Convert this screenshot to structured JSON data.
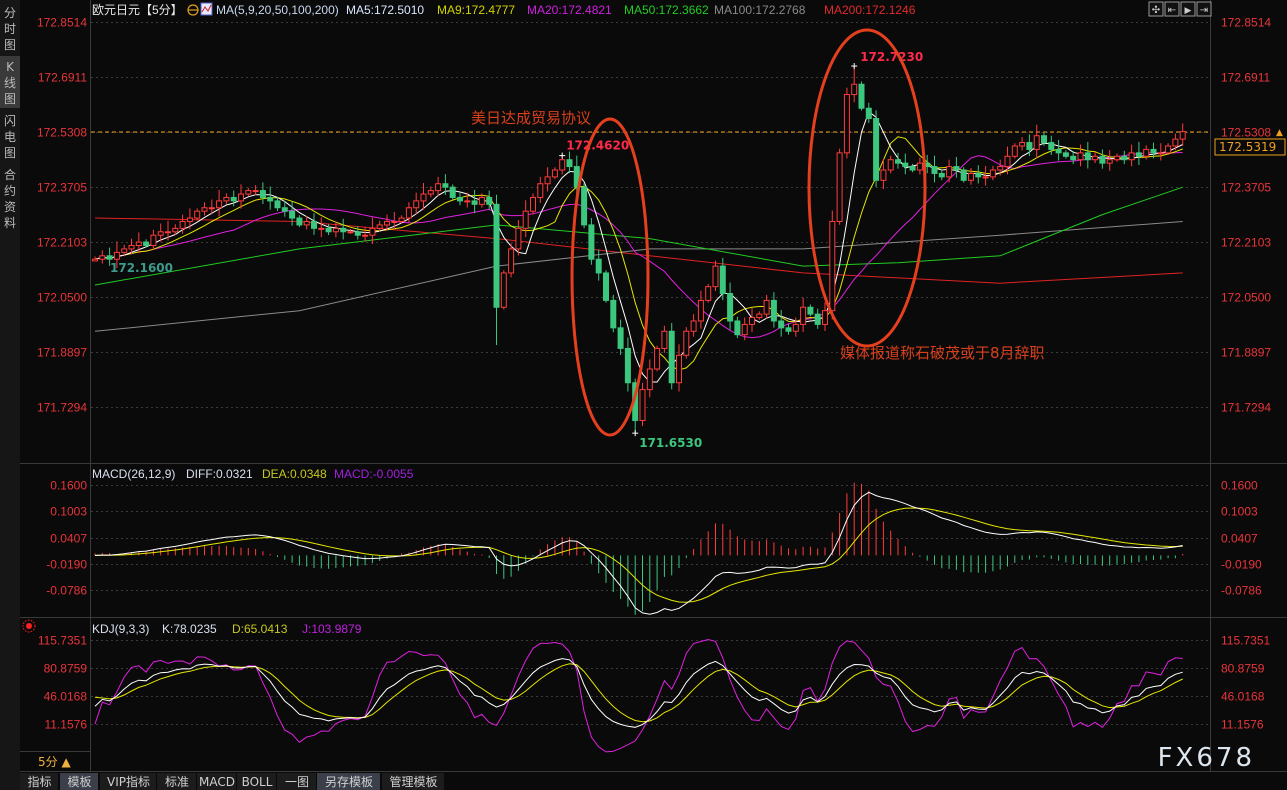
{
  "sidebar": {
    "tabs": [
      {
        "label": [
          "分",
          "时",
          "图"
        ],
        "active": false
      },
      {
        "label": [
          "K",
          "线",
          "图"
        ],
        "active": true
      },
      {
        "label": [
          "闪",
          "电",
          "图"
        ],
        "active": false
      },
      {
        "label": [
          "合",
          "约",
          "资",
          "料"
        ],
        "active": false
      }
    ]
  },
  "header": {
    "symbol": "欧元日元【5分】",
    "ma_params": "MA(5,9,20,50,100,200)",
    "ma5": "MA5:172.5010",
    "ma9": "MA9:172.4777",
    "ma20": "MA20:172.4821",
    "ma50": "MA50:172.3662",
    "ma100": "MA100:172.2768",
    "ma200": "MA200:172.1246"
  },
  "macd_header": {
    "title": "MACD(26,12,9)",
    "diff": "DIFF:0.0321",
    "dea": "DEA:0.0348",
    "macd": "MACD:-0.0055"
  },
  "kdj_header": {
    "title": "KDJ(9,3,3)",
    "k": "K:78.0235",
    "d": "D:65.0413",
    "j": "J:103.9879"
  },
  "period_label": "5分 ▲",
  "toolbar": [
    {
      "label": "指标",
      "active": false
    },
    {
      "label": "模板",
      "active": true
    },
    {
      "label": "VIP指标",
      "active": false,
      "accent": true
    },
    {
      "label": "标准",
      "active": false
    },
    {
      "label": "MACD",
      "active": false
    },
    {
      "label": "BOLL",
      "active": false
    },
    {
      "label": "一图",
      "active": false
    },
    {
      "label": "另存模板",
      "active": true
    },
    {
      "label": "管理模板",
      "active": false
    }
  ],
  "watermark": "FX678",
  "colors": {
    "up": "#ff3b3b",
    "down": "#3cc77e",
    "axis": "#e8353a",
    "annotation": "#e5401e",
    "ma5": "#ffffff",
    "ma9": "#e6e600",
    "ma20": "#e020e0",
    "ma50": "#22cc22",
    "ma100": "#8a8a8a",
    "ma200": "#e02222",
    "current_price": "#f0a020"
  },
  "chart_data": [
    {
      "type": "candlestick",
      "title": "欧元日元【5分】",
      "interval": "5分",
      "y_ticks": [
        "172.8514",
        "172.6911",
        "172.5308",
        "172.3705",
        "172.2103",
        "172.0500",
        "171.8897",
        "171.7294"
      ],
      "ylim": [
        171.6,
        172.87
      ],
      "grid": true,
      "close": [
        172.16,
        172.17,
        172.16,
        172.18,
        172.19,
        172.2,
        172.21,
        172.2,
        172.23,
        172.24,
        172.24,
        172.25,
        172.27,
        172.28,
        172.3,
        172.31,
        172.31,
        172.33,
        172.34,
        172.33,
        172.35,
        172.36,
        172.36,
        172.34,
        172.33,
        172.31,
        172.3,
        172.28,
        172.26,
        172.27,
        172.25,
        172.25,
        172.24,
        172.25,
        172.24,
        172.24,
        172.23,
        172.23,
        172.25,
        172.26,
        172.27,
        172.27,
        172.28,
        172.31,
        172.33,
        172.35,
        172.36,
        172.38,
        172.37,
        172.34,
        172.33,
        172.33,
        172.32,
        172.34,
        172.32,
        172.02,
        172.12,
        172.19,
        172.25,
        172.3,
        172.34,
        172.38,
        172.4,
        172.42,
        172.45,
        172.43,
        172.37,
        172.26,
        172.16,
        172.12,
        172.04,
        171.96,
        171.9,
        171.8,
        171.69,
        171.78,
        171.84,
        171.9,
        171.95,
        171.8,
        171.88,
        171.95,
        171.98,
        172.04,
        172.08,
        172.14,
        172.06,
        171.98,
        171.94,
        171.97,
        171.99,
        172.0,
        172.04,
        171.98,
        171.96,
        171.95,
        171.97,
        172.02,
        172.0,
        171.97,
        172.01,
        172.27,
        172.47,
        172.64,
        172.67,
        172.6,
        172.57,
        172.39,
        172.42,
        172.45,
        172.44,
        172.43,
        172.42,
        172.44,
        172.43,
        172.41,
        172.4,
        172.43,
        172.42,
        172.39,
        172.41,
        172.4,
        172.4,
        172.42,
        172.43,
        172.46,
        172.49,
        172.5,
        172.48,
        172.52,
        172.5,
        172.48,
        172.47,
        172.46,
        172.45,
        172.47,
        172.45,
        172.46,
        172.44,
        172.45,
        172.46,
        172.45,
        172.47,
        172.46,
        172.48,
        172.47,
        172.47,
        172.49,
        172.51,
        172.5319
      ],
      "high_overrides": {
        "64": 172.462,
        "104": 172.723
      },
      "low_overrides": {
        "0": 172.16,
        "55": 171.91,
        "74": 171.653
      },
      "ma_long": {
        "MA50": [
          [
            0,
            172.085
          ],
          [
            28,
            172.19
          ],
          [
            55,
            172.26
          ],
          [
            76,
            172.22
          ],
          [
            97,
            172.14
          ],
          [
            110,
            172.15
          ],
          [
            124,
            172.17
          ],
          [
            138,
            172.29
          ],
          [
            149,
            172.37
          ]
        ],
        "MA100": [
          [
            0,
            171.95
          ],
          [
            28,
            172.01
          ],
          [
            55,
            172.14
          ],
          [
            76,
            172.19
          ],
          [
            97,
            172.19
          ],
          [
            124,
            172.23
          ],
          [
            149,
            172.27
          ]
        ],
        "MA200": [
          [
            0,
            172.28
          ],
          [
            28,
            172.27
          ],
          [
            55,
            172.22
          ],
          [
            76,
            172.17
          ],
          [
            97,
            172.12
          ],
          [
            124,
            172.09
          ],
          [
            149,
            172.12
          ]
        ]
      },
      "price_labels": [
        {
          "index": 64,
          "text": "172.4620"
        },
        {
          "index": 74,
          "text": "171.6530"
        },
        {
          "index": 104,
          "text": "172.7230"
        },
        {
          "index": 0,
          "text": "172.1600"
        }
      ],
      "reference_line": {
        "value": 172.5308,
        "label": "172.5308"
      },
      "current_price": "172.5319",
      "annotations": [
        {
          "text": "美日达成贸易协议",
          "near_index": 64
        },
        {
          "text": "媒体报道称石破茂或于8月辞职",
          "near_index": 104
        }
      ]
    },
    {
      "type": "macd",
      "title": "MACD(26,12,9)",
      "y_ticks": [
        "0.1600",
        "0.1003",
        "0.0407",
        "-0.0190",
        "-0.0786"
      ],
      "ylim": [
        -0.1,
        0.18
      ]
    },
    {
      "type": "kdj",
      "title": "KDJ(9,3,3)",
      "y_ticks": [
        "115.7351",
        "80.8759",
        "46.0168",
        "11.1576"
      ],
      "ylim": [
        -10,
        125
      ]
    }
  ]
}
